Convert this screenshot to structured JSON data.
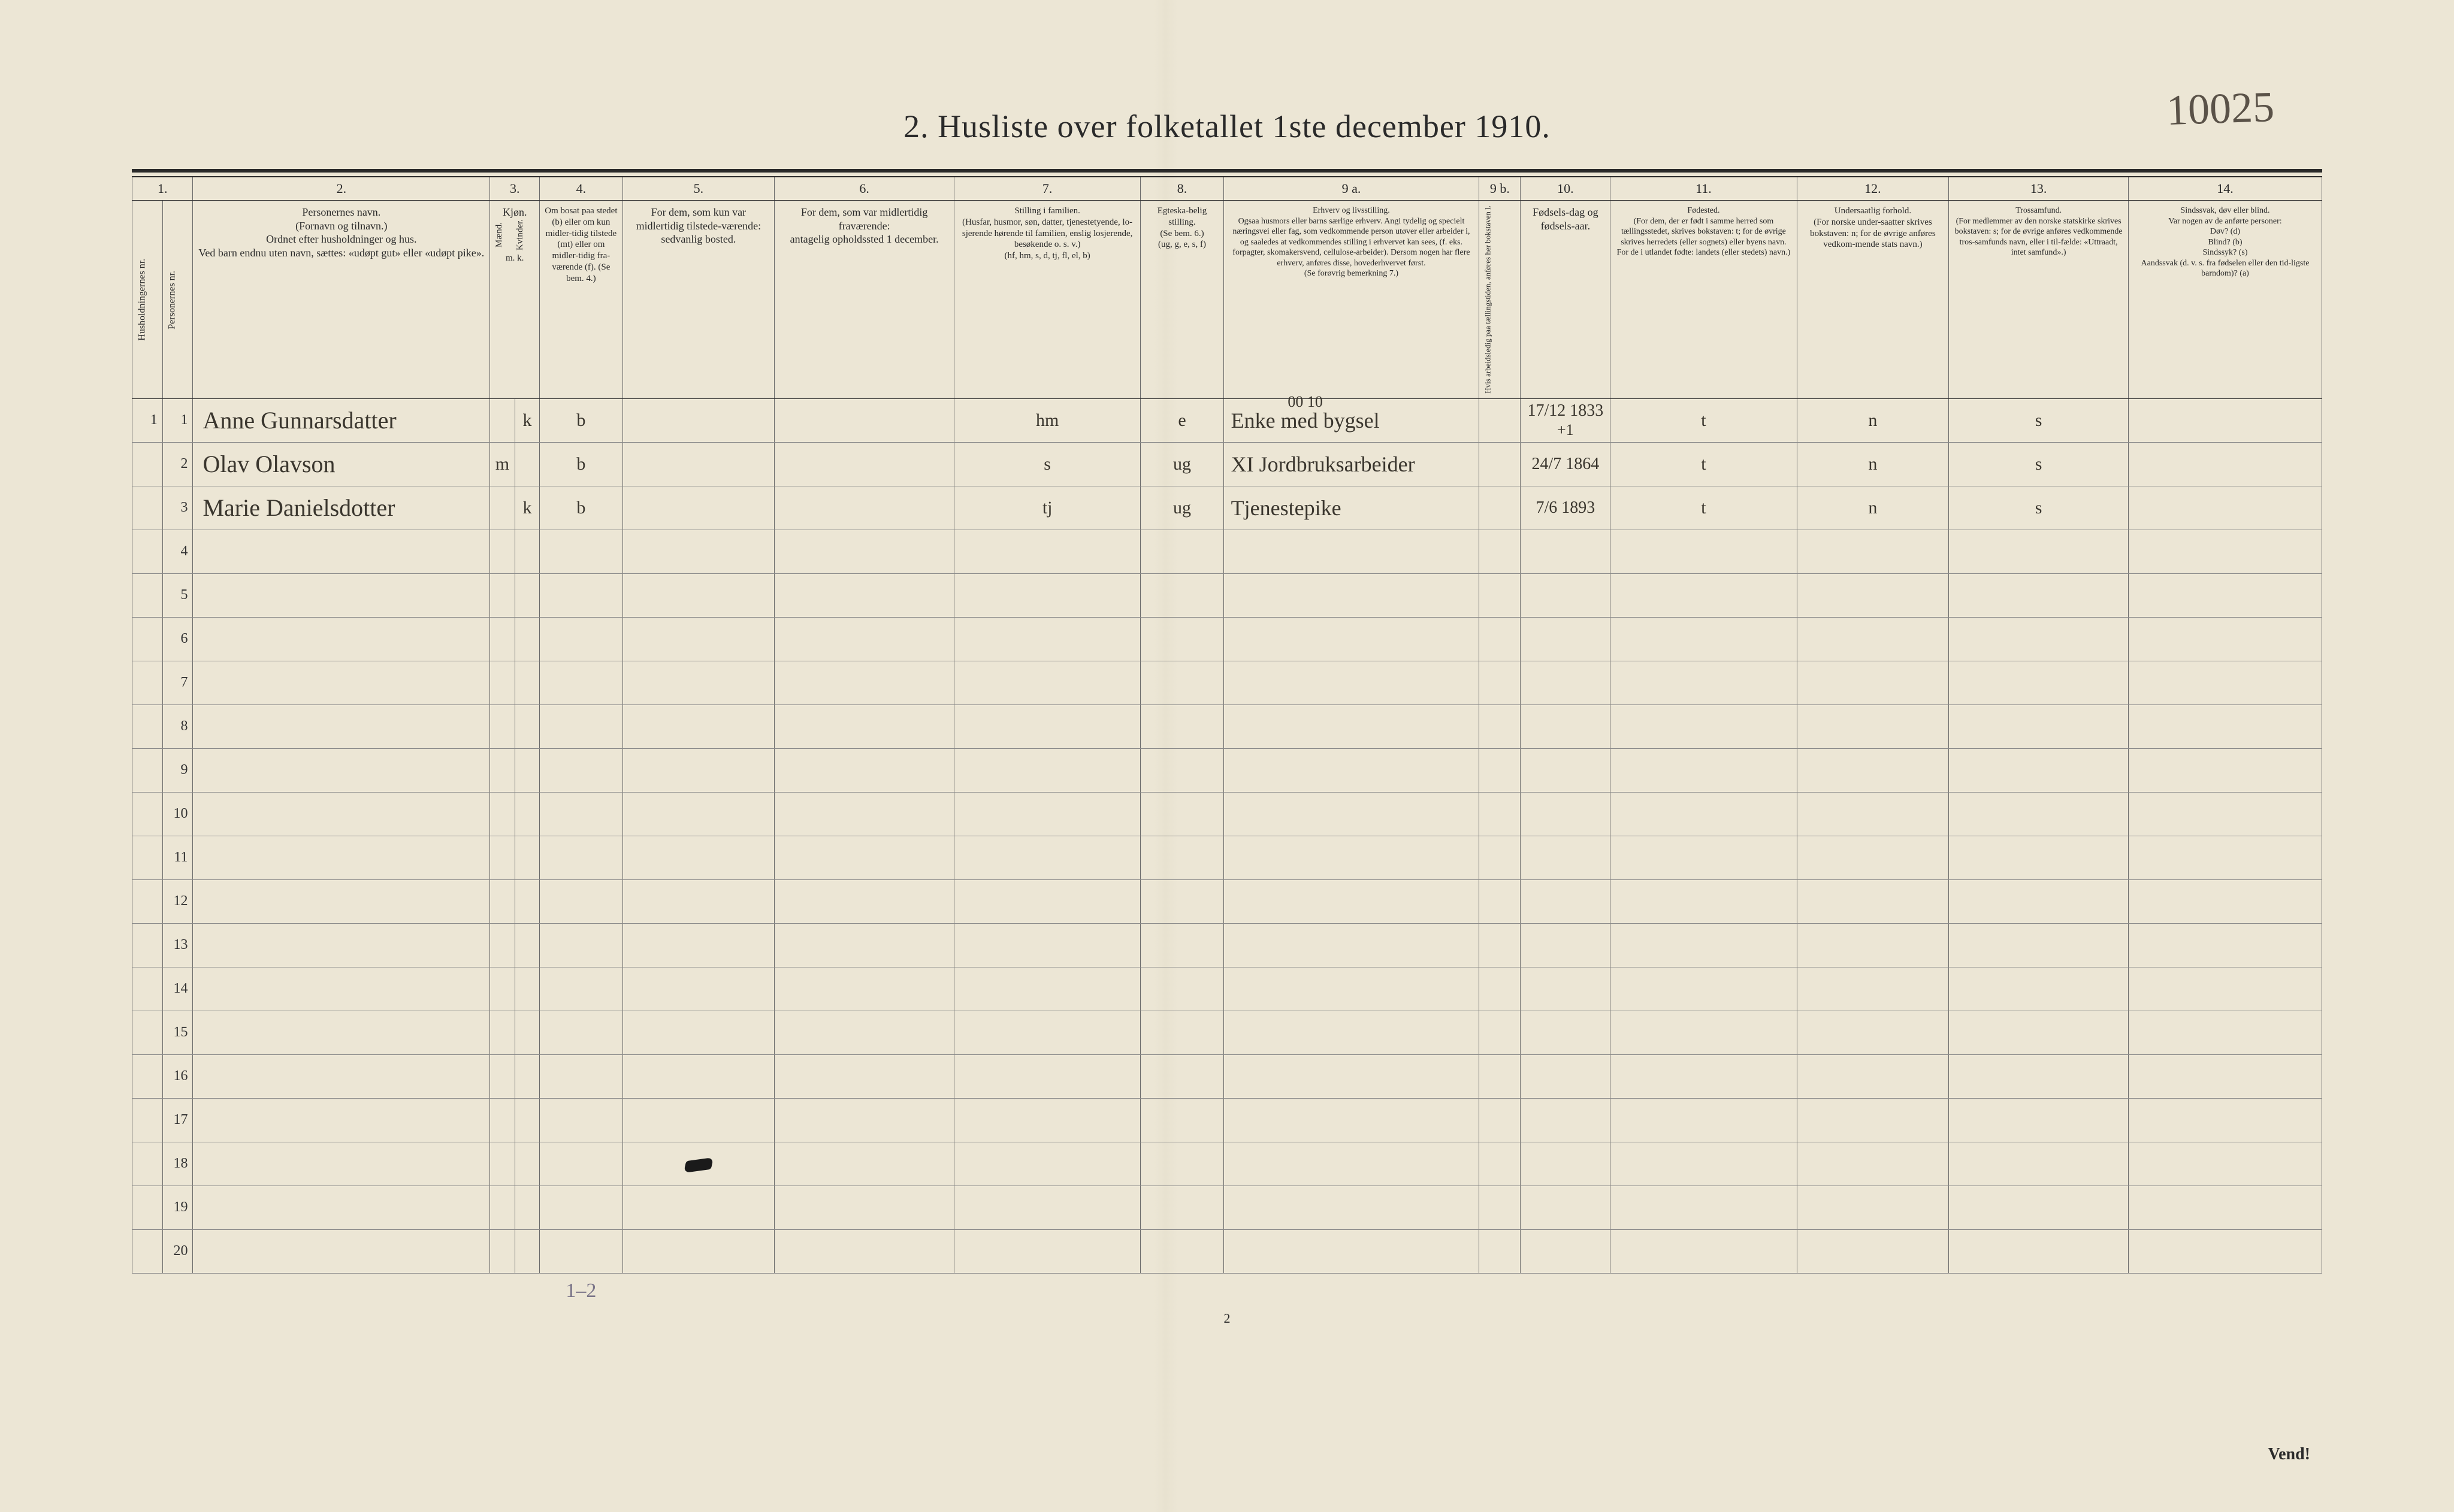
{
  "page": {
    "title": "2.  Husliste over folketallet 1ste december 1910.",
    "handwritten_topright": "10025",
    "footer_page_number": "2",
    "vend_label": "Vend!",
    "background_color": "#ece6d5",
    "rule_color": "#2a2a2a",
    "text_color": "#2a2a2a",
    "handwriting_color": "#3a362e"
  },
  "columns": {
    "nums": [
      "1.",
      "2.",
      "3.",
      "4.",
      "5.",
      "6.",
      "7.",
      "8.",
      "9 a.",
      "9 b.",
      "10.",
      "11.",
      "12.",
      "13.",
      "14."
    ],
    "headers": {
      "c1": "Husholdningernes nr.",
      "c1b": "Personernes nr.",
      "c2": "Personernes navn.\n(Fornavn og tilnavn.)\nOrdnet efter husholdninger og hus.\nVed barn endnu uten navn, sættes: «udøpt gut» eller «udøpt pike».",
      "c3": "Kjøn.",
      "c3a": "Mænd.",
      "c3b": "Kvinder.",
      "c3_foot": "m.  k.",
      "c4": "Om bosat paa stedet (b) eller om kun midler-tidig tilstede (mt) eller om midler-tidig fra-værende (f). (Se bem. 4.)",
      "c5": "For dem, som kun var midlertidig tilstede-værende:\nsedvanlig bosted.",
      "c6": "For dem, som var midlertidig fraværende:\nantagelig opholdssted 1 december.",
      "c7": "Stilling i familien.\n(Husfar, husmor, søn, datter, tjenestetyende, lo-sjerende hørende til familien, enslig losjerende, besøkende o. s. v.)\n(hf, hm, s, d, tj, fl, el, b)",
      "c8": "Egteska-belig stilling.\n(Se bem. 6.)\n(ug, g, e, s, f)",
      "c9a": "Erhverv og livsstilling.\nOgsaa husmors eller barns særlige erhverv. Angi tydelig og specielt næringsvei eller fag, som vedkommende person utøver eller arbeider i, og saaledes at vedkommendes stilling i erhvervet kan sees, (f. eks. forpagter, skomakersvend, cellulose-arbeider). Dersom nogen har flere erhverv, anføres disse, hovederhvervet først.\n(Se forøvrig bemerkning 7.)",
      "c9b": "Hvis arbeidsledig paa tællingstiden, anføres her bokstaven l.",
      "c10": "Fødsels-dag og fødsels-aar.",
      "c11": "Fødested.\n(For dem, der er født i samme herred som tællingsstedet, skrives bokstaven: t; for de øvrige skrives herredets (eller sognets) eller byens navn. For de i utlandet fødte: landets (eller stedets) navn.)",
      "c12": "Undersaatlig forhold.\n(For norske under-saatter skrives bokstaven: n; for de øvrige anføres vedkom-mende stats navn.)",
      "c13": "Trossamfund.\n(For medlemmer av den norske statskirke skrives bokstaven: s; for de øvrige anføres vedkommende tros-samfunds navn, eller i til-fælde: «Uttraadt, intet samfund».)",
      "c14": "Sindssvak, døv eller blind.\nVar nogen av de anførte personer:\nDøv? (d)\nBlind? (b)\nSindssyk? (s)\nAandssvak (d. v. s. fra fødselen eller den tid-ligste barndom)? (a)"
    }
  },
  "rows": [
    {
      "hnr": "1",
      "pnr": "1",
      "name": "Anne Gunnarsdatter",
      "sex_m": "",
      "sex_k": "k",
      "bosat": "b",
      "mt_sted": "",
      "fra_sted": "",
      "stilling_fam": "hm",
      "egt": "e",
      "erhverv": "Enke med bygsel",
      "erhverv_above": "00 10",
      "arb_ledig": "",
      "fodsel": "17/12 1833",
      "fodsel_extra": "+1",
      "fodested": "t",
      "undersaat": "n",
      "tros": "s",
      "sinds": ""
    },
    {
      "hnr": "",
      "pnr": "2",
      "name": "Olav Olavson",
      "sex_m": "m",
      "sex_k": "",
      "bosat": "b",
      "mt_sted": "",
      "fra_sted": "",
      "stilling_fam": "s",
      "egt": "ug",
      "erhverv": "XI Jordbruksarbeider",
      "erhverv_above": "",
      "arb_ledig": "",
      "fodsel": "24/7 1864",
      "fodsel_extra": "",
      "fodested": "t",
      "undersaat": "n",
      "tros": "s",
      "sinds": ""
    },
    {
      "hnr": "",
      "pnr": "3",
      "name": "Marie Danielsdotter",
      "sex_m": "",
      "sex_k": "k",
      "bosat": "b",
      "mt_sted": "",
      "fra_sted": "",
      "stilling_fam": "tj",
      "egt": "ug",
      "erhverv": "Tjenestepike",
      "erhverv_above": "",
      "arb_ledig": "",
      "fodsel": "7/6 1893",
      "fodsel_extra": "",
      "fodested": "t",
      "undersaat": "n",
      "tros": "s",
      "sinds": ""
    }
  ],
  "empty_row_numbers": [
    "4",
    "5",
    "6",
    "7",
    "8",
    "9",
    "10",
    "11",
    "12",
    "13",
    "14",
    "15",
    "16",
    "17",
    "18",
    "19",
    "20"
  ],
  "bottom_pencil_note": "1–2",
  "ink_blot_row": 18
}
